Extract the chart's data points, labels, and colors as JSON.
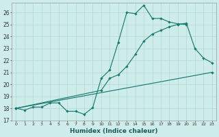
{
  "xlabel": "Humidex (Indice chaleur)",
  "bg_color": "#ceecea",
  "grid_color": "#aed8d4",
  "line_color": "#1a7a6e",
  "xlim": [
    -0.5,
    23.5
  ],
  "ylim": [
    17,
    26.8
  ],
  "xticks": [
    0,
    1,
    2,
    3,
    4,
    5,
    6,
    7,
    8,
    9,
    10,
    11,
    12,
    13,
    14,
    15,
    16,
    17,
    18,
    19,
    20,
    21,
    22,
    23
  ],
  "yticks": [
    17,
    18,
    19,
    20,
    21,
    22,
    23,
    24,
    25,
    26
  ],
  "line1_x": [
    0,
    1,
    2,
    3,
    4,
    5,
    6,
    7,
    8,
    9,
    10,
    11,
    12,
    13,
    14,
    15,
    16,
    17,
    18,
    19,
    20
  ],
  "line1_y": [
    18.0,
    17.85,
    18.1,
    18.1,
    18.45,
    18.45,
    17.75,
    17.75,
    17.5,
    18.05,
    20.5,
    21.2,
    23.5,
    26.0,
    25.9,
    26.6,
    25.5,
    25.5,
    25.2,
    25.05,
    25.0
  ],
  "line2_x": [
    0,
    10,
    11,
    12,
    13,
    14,
    15,
    16,
    17,
    18,
    19,
    20,
    21,
    22,
    23
  ],
  "line2_y": [
    18.0,
    19.5,
    20.5,
    20.8,
    21.5,
    22.5,
    23.6,
    24.2,
    24.5,
    24.8,
    25.0,
    25.1,
    23.0,
    22.2,
    21.8
  ],
  "line3_x": [
    0,
    23
  ],
  "line3_y": [
    18.0,
    21.0
  ]
}
